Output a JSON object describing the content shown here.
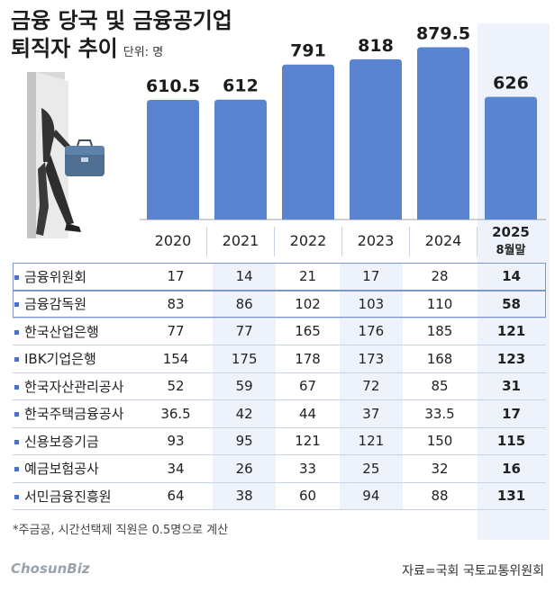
{
  "title": {
    "line1": "금융 당국 및 금융공기업",
    "line2": "퇴직자 추이",
    "unit": "단위: 명"
  },
  "chart_data": {
    "type": "bar",
    "categories": [
      "2020",
      "2021",
      "2022",
      "2023",
      "2024",
      "2025"
    ],
    "category_sublabels": [
      "",
      "",
      "",
      "",
      "",
      "8월말"
    ],
    "values": [
      610.5,
      612,
      791,
      818,
      879.5,
      626
    ],
    "value_labels": [
      "610.5",
      "612",
      "791",
      "818",
      "879.5",
      "626"
    ],
    "title": "퇴직자 추이",
    "ylim": [
      0,
      900
    ],
    "bar_color": "#5b84d0",
    "highlight_color": "#eef3fb"
  },
  "table": {
    "rows": [
      {
        "name": "금융위원회",
        "values": [
          "17",
          "14",
          "21",
          "17",
          "28",
          "14"
        ]
      },
      {
        "name": "금융감독원",
        "values": [
          "83",
          "86",
          "102",
          "103",
          "110",
          "58"
        ]
      },
      {
        "name": "한국산업은행",
        "values": [
          "77",
          "77",
          "165",
          "176",
          "185",
          "121"
        ]
      },
      {
        "name": "IBK기업은행",
        "values": [
          "154",
          "175",
          "178",
          "173",
          "168",
          "123"
        ]
      },
      {
        "name": "한국자산관리공사",
        "values": [
          "52",
          "59",
          "67",
          "72",
          "85",
          "31"
        ]
      },
      {
        "name": "한국주택금융공사",
        "values": [
          "36.5",
          "42",
          "44",
          "37",
          "33.5",
          "17"
        ]
      },
      {
        "name": "신용보증기금",
        "values": [
          "93",
          "95",
          "121",
          "121",
          "150",
          "115"
        ]
      },
      {
        "name": "예금보험공사",
        "values": [
          "34",
          "26",
          "33",
          "25",
          "32",
          "16"
        ]
      },
      {
        "name": "서민금융진흥원",
        "values": [
          "64",
          "38",
          "60",
          "94",
          "88",
          "131"
        ]
      }
    ]
  },
  "note": "*주금공, 시간선택제 직원은 0.5명으로 계산",
  "logo": "ChosunBiz",
  "source": "자료=국회 국토교통위원회"
}
